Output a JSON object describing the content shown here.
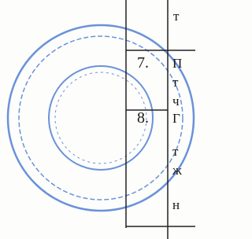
{
  "top_lines": [
    "т"
  ],
  "rows": [
    {
      "number": "7.",
      "lines": [
        "П",
        "т",
        "ч"
      ]
    },
    {
      "number": "8.",
      "lines": [
        "Г",
        "т",
        "ж",
        "н"
      ]
    }
  ]
}
